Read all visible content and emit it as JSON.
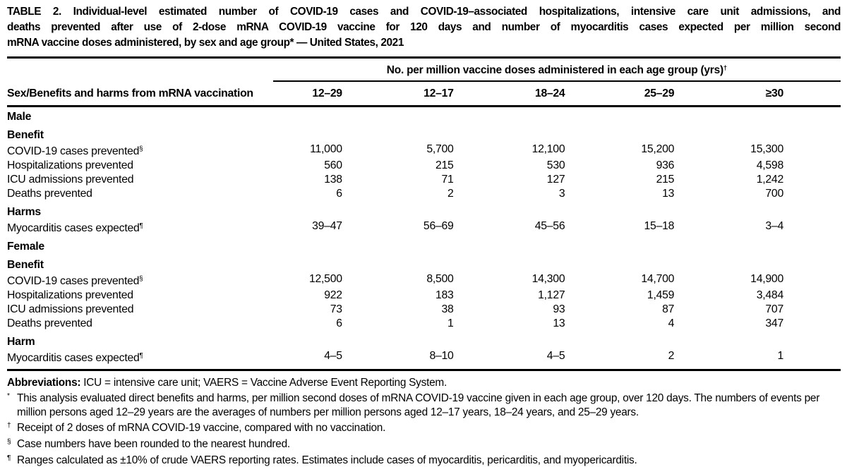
{
  "title": {
    "line1": "TABLE 2. Individual-level estimated number of COVID-19 cases and COVID-19–associated hospitalizations, intensive care unit admissions, and",
    "line2": "deaths prevented after use of 2-dose mRNA COVID-19 vaccine for 120 days and number of myocarditis cases expected per million second",
    "line3": "mRNA vaccine doses administered, by sex and age group* — United States, 2021"
  },
  "table": {
    "spanner_label": "No. per million vaccine doses administered in each age group (yrs)",
    "spanner_footnote_mark": "†",
    "stub_header": "Sex/Benefits and harms from mRNA vaccination",
    "age_group_headers": [
      "12–29",
      "12–17",
      "18–24",
      "25–29",
      "≥30"
    ],
    "rows": [
      {
        "kind": "sex",
        "label": "Male",
        "values": []
      },
      {
        "kind": "group",
        "label": "Benefit",
        "values": []
      },
      {
        "kind": "data",
        "label": "COVID-19 cases prevented",
        "sup": "§",
        "values": [
          "11,000",
          "5,700",
          "12,100",
          "15,200",
          "15,300"
        ]
      },
      {
        "kind": "data",
        "label": "Hospitalizations prevented",
        "values": [
          "560",
          "215",
          "530",
          "936",
          "4,598"
        ]
      },
      {
        "kind": "data",
        "label": "ICU admissions prevented",
        "values": [
          "138",
          "71",
          "127",
          "215",
          "1,242"
        ]
      },
      {
        "kind": "data",
        "label": "Deaths prevented",
        "values": [
          "6",
          "2",
          "3",
          "13",
          "700"
        ]
      },
      {
        "kind": "group",
        "label": "Harms",
        "values": []
      },
      {
        "kind": "data",
        "label": "Myocarditis cases expected",
        "sup": "¶",
        "values": [
          "39–47",
          "56–69",
          "45–56",
          "15–18",
          "3–4"
        ]
      },
      {
        "kind": "sex",
        "label": "Female",
        "values": []
      },
      {
        "kind": "group",
        "label": "Benefit",
        "values": []
      },
      {
        "kind": "data",
        "label": "COVID-19 cases prevented",
        "sup": "§",
        "values": [
          "12,500",
          "8,500",
          "14,300",
          "14,700",
          "14,900"
        ]
      },
      {
        "kind": "data",
        "label": "Hospitalizations prevented",
        "values": [
          "922",
          "183",
          "1,127",
          "1,459",
          "3,484"
        ]
      },
      {
        "kind": "data",
        "label": "ICU admissions prevented",
        "values": [
          "73",
          "38",
          "93",
          "87",
          "707"
        ]
      },
      {
        "kind": "data",
        "label": "Deaths prevented",
        "values": [
          "6",
          "1",
          "13",
          "4",
          "347"
        ]
      },
      {
        "kind": "group",
        "label": "Harm",
        "values": []
      },
      {
        "kind": "data",
        "label": "Myocarditis cases expected",
        "sup": "¶",
        "values": [
          "4–5",
          "8–10",
          "4–5",
          "2",
          "1"
        ]
      }
    ]
  },
  "footnotes": {
    "abbr_label": "Abbreviations:",
    "abbr_text": " ICU = intensive care unit; VAERS = Vaccine Adverse Event Reporting System.",
    "notes": [
      {
        "mark": "*",
        "text": "This analysis evaluated direct benefits and harms, per million second doses of mRNA COVID-19 vaccine given in each age group, over 120 days. The numbers of events per million persons aged 12–29 years are the averages of numbers per million persons aged 12–17 years, 18–24 years, and 25–29 years."
      },
      {
        "mark": "†",
        "text": "Receipt of 2 doses of mRNA COVID-19 vaccine, compared with no vaccination."
      },
      {
        "mark": "§",
        "text": "Case numbers have been rounded to the nearest hundred."
      },
      {
        "mark": "¶",
        "text": "Ranges calculated as ±10% of crude VAERS reporting rates. Estimates include cases of myocarditis, pericarditis, and myopericarditis."
      }
    ]
  }
}
